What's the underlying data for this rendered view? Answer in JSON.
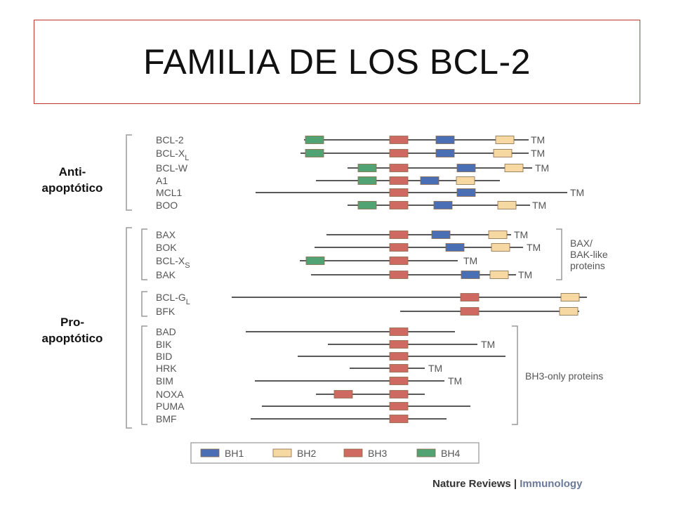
{
  "title": "FAMILIA DE LOS BCL-2",
  "side_labels": {
    "anti": "Anti-\napoptótico",
    "pro": "Pro-\napoptótico"
  },
  "colors": {
    "BH1": "#4a6fb5",
    "BH2": "#f6d9a2",
    "BH3": "#cf6a63",
    "BH4": "#52a374",
    "line": "#222222",
    "label": "#555555",
    "title_border": "#c0392b"
  },
  "proteins": [
    {
      "name": "BCL-2",
      "tm": "TM",
      "domains": [
        "BH4",
        "BH3",
        "BH1",
        "BH2"
      ]
    },
    {
      "name": "BCL-X",
      "sub": "L",
      "tm": "TM",
      "domains": [
        "BH4",
        "BH3",
        "BH1",
        "BH2"
      ]
    },
    {
      "name": "BCL-W",
      "tm": "TM",
      "domains": [
        "BH4",
        "BH3",
        "BH1",
        "BH2"
      ]
    },
    {
      "name": "A1",
      "tm": "",
      "domains": [
        "BH4",
        "BH3",
        "BH1",
        "BH2"
      ]
    },
    {
      "name": "MCL1",
      "tm": "TM",
      "domains": [
        "BH3",
        "BH1"
      ]
    },
    {
      "name": "BOO",
      "tm": "TM",
      "domains": [
        "BH4",
        "BH3",
        "BH1",
        "BH2"
      ]
    },
    {
      "name": "BAX",
      "tm": "TM",
      "domains": [
        "BH3",
        "BH1",
        "BH2"
      ]
    },
    {
      "name": "BOK",
      "tm": "TM",
      "domains": [
        "BH3",
        "BH1",
        "BH2"
      ]
    },
    {
      "name": "BCL-X",
      "sub": "S",
      "tm": "TM",
      "domains": [
        "BH4",
        "BH3"
      ]
    },
    {
      "name": "BAK",
      "tm": "TM",
      "domains": [
        "BH3",
        "BH1",
        "BH2"
      ]
    },
    {
      "name": "BCL-G",
      "sub": "L",
      "tm": "",
      "domains": [
        "BH3",
        "BH2"
      ]
    },
    {
      "name": "BFK",
      "tm": "",
      "domains": [
        "BH3",
        "BH2"
      ]
    },
    {
      "name": "BAD",
      "tm": "",
      "domains": [
        "BH3"
      ]
    },
    {
      "name": "BIK",
      "tm": "TM",
      "domains": [
        "BH3"
      ]
    },
    {
      "name": "BID",
      "tm": "",
      "domains": [
        "BH3"
      ]
    },
    {
      "name": "HRK",
      "tm": "TM",
      "domains": [
        "BH3"
      ]
    },
    {
      "name": "BIM",
      "tm": "TM",
      "domains": [
        "BH3"
      ]
    },
    {
      "name": "NOXA",
      "tm": "",
      "domains": [
        "BH3",
        "BH3"
      ]
    },
    {
      "name": "PUMA",
      "tm": "",
      "domains": [
        "BH3"
      ]
    },
    {
      "name": "BMF",
      "tm": "",
      "domains": [
        "BH3"
      ]
    }
  ],
  "group_labels": {
    "bax_bak": [
      "BAX/",
      "BAK-like",
      "proteins"
    ],
    "bh3_only": "BH3-only proteins"
  },
  "legend": [
    {
      "key": "BH1",
      "label": "BH1"
    },
    {
      "key": "BH2",
      "label": "BH2"
    },
    {
      "key": "BH3",
      "label": "BH3"
    },
    {
      "key": "BH4",
      "label": "BH4"
    }
  ],
  "credit": {
    "journal": "Nature Reviews",
    "separator": "|",
    "section": "Immunology"
  }
}
